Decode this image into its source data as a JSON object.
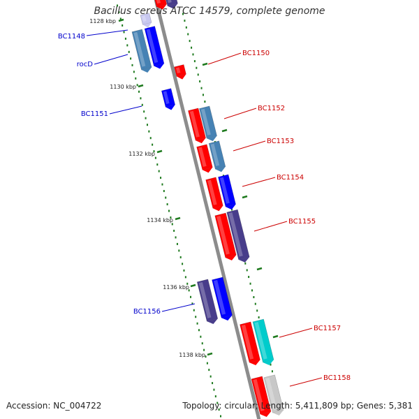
{
  "title": "Bacillus cereus ATCC 14579, complete genome",
  "footer": {
    "accession": "Accession: NC_004722",
    "summary": "Topology: circular; Length: 5,411,809 bp; Genes: 5,381"
  },
  "colors": {
    "backbone": "#8c8c8c",
    "tick": "#1e7a1e",
    "plus_label": "#cc0000",
    "minus_label": "#0000cc",
    "gene_red": "#ff0000",
    "gene_steel": "#4682b4",
    "gene_blue": "#0000ff",
    "gene_navy": "#483d8b",
    "gene_cyan": "#00cccc",
    "gene_gray": "#c8c8c8"
  },
  "axis": {
    "unit": "kbp",
    "tick_labels": [
      "1128 kbp",
      "1130 kbp",
      "1132 kbp",
      "1134 kbp",
      "1136 kbp",
      "1138 kbp"
    ]
  },
  "genes": {
    "minus_labels": [
      "BC1148",
      "rocD",
      "BC1151",
      "BC1156"
    ],
    "plus_labels": [
      "BC1150",
      "BC1152",
      "BC1153",
      "BC1154",
      "BC1155",
      "BC1157",
      "BC1158"
    ]
  }
}
